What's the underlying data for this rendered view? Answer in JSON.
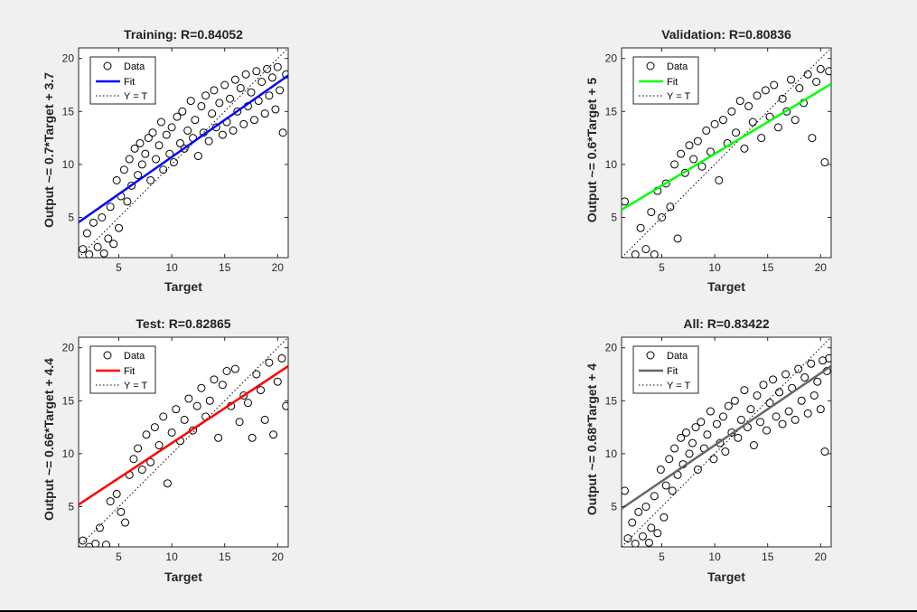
{
  "figure": {
    "background": "#f0f0f0",
    "panels": [
      {
        "title": "Training: R=0.84052",
        "xlabel": "Target",
        "ylabel": "Output ~= 0.7*Target + 3.7",
        "xlim": [
          1.2,
          21
        ],
        "ylim": [
          1.2,
          21
        ],
        "xticks": [
          5,
          10,
          15,
          20
        ],
        "yticks": [
          5,
          10,
          15,
          20
        ],
        "fit": {
          "slope": 0.7,
          "intercept": 3.7,
          "color": "#0000ff"
        },
        "legend": {
          "data": "Data",
          "fit": "Fit",
          "ident": "Y = T",
          "position": "top-left"
        }
      },
      {
        "title": "Validation: R=0.80836",
        "xlabel": "Target",
        "ylabel": "Output ~= 0.6*Target + 5",
        "xlim": [
          1.2,
          21
        ],
        "ylim": [
          1.2,
          21
        ],
        "xticks": [
          5,
          10,
          15,
          20
        ],
        "yticks": [
          5,
          10,
          15,
          20
        ],
        "fit": {
          "slope": 0.6,
          "intercept": 5,
          "color": "#00ff00"
        },
        "legend": {
          "data": "Data",
          "fit": "Fit",
          "ident": "Y = T",
          "position": "top-left"
        }
      },
      {
        "title": "Test: R=0.82865",
        "xlabel": "Target",
        "ylabel": "Output ~= 0.66*Target + 4.4",
        "xlim": [
          1.2,
          21
        ],
        "ylim": [
          1.2,
          21
        ],
        "xticks": [
          5,
          10,
          15,
          20
        ],
        "yticks": [
          5,
          10,
          15,
          20
        ],
        "fit": {
          "slope": 0.66,
          "intercept": 4.4,
          "color": "#ff0000"
        },
        "legend": {
          "data": "Data",
          "fit": "Fit",
          "ident": "Y = T",
          "position": "top-left"
        }
      },
      {
        "title": "All: R=0.83422",
        "xlabel": "Target",
        "ylabel": "Output ~= 0.68*Target + 4",
        "xlim": [
          1.2,
          21
        ],
        "ylim": [
          1.2,
          21
        ],
        "xticks": [
          5,
          10,
          15,
          20
        ],
        "yticks": [
          5,
          10,
          15,
          20
        ],
        "fit": {
          "slope": 0.68,
          "intercept": 4,
          "color": "#666666"
        },
        "legend": {
          "data": "Data",
          "fit": "Fit",
          "ident": "Y = T",
          "position": "top-left"
        }
      }
    ]
  },
  "chart_data": [
    {
      "type": "scatter",
      "title": "Training: R=0.84052",
      "xlabel": "Target",
      "ylabel": "Output ~= 0.7*Target + 3.7",
      "xlim": [
        1.2,
        21
      ],
      "ylim": [
        1.2,
        21
      ],
      "grid": false,
      "legend": [
        "Data",
        "Fit",
        "Y = T"
      ],
      "points": [
        [
          1.6,
          2.0
        ],
        [
          2.0,
          3.5
        ],
        [
          2.2,
          1.5
        ],
        [
          2.6,
          4.5
        ],
        [
          3.0,
          2.2
        ],
        [
          3.4,
          5.0
        ],
        [
          3.6,
          1.6
        ],
        [
          4.0,
          3.0
        ],
        [
          4.2,
          6.0
        ],
        [
          4.5,
          2.5
        ],
        [
          4.8,
          8.5
        ],
        [
          5.0,
          4.0
        ],
        [
          5.2,
          7.0
        ],
        [
          5.5,
          9.5
        ],
        [
          5.8,
          6.5
        ],
        [
          6.0,
          10.5
        ],
        [
          6.2,
          8.0
        ],
        [
          6.5,
          11.5
        ],
        [
          6.8,
          9.0
        ],
        [
          7.0,
          12.0
        ],
        [
          7.2,
          10.0
        ],
        [
          7.5,
          11.0
        ],
        [
          7.8,
          12.5
        ],
        [
          8.0,
          8.5
        ],
        [
          8.2,
          13.0
        ],
        [
          8.5,
          10.5
        ],
        [
          8.8,
          11.8
        ],
        [
          9.0,
          14.0
        ],
        [
          9.2,
          9.5
        ],
        [
          9.5,
          12.8
        ],
        [
          9.8,
          11.0
        ],
        [
          10.0,
          13.5
        ],
        [
          10.2,
          10.2
        ],
        [
          10.5,
          14.5
        ],
        [
          10.8,
          12.0
        ],
        [
          11.0,
          15.0
        ],
        [
          11.2,
          11.5
        ],
        [
          11.5,
          13.2
        ],
        [
          11.8,
          16.0
        ],
        [
          12.0,
          12.5
        ],
        [
          12.2,
          14.2
        ],
        [
          12.5,
          10.8
        ],
        [
          12.8,
          15.5
        ],
        [
          13.0,
          13.0
        ],
        [
          13.2,
          16.5
        ],
        [
          13.5,
          12.2
        ],
        [
          13.8,
          14.8
        ],
        [
          14.0,
          17.0
        ],
        [
          14.2,
          13.5
        ],
        [
          14.5,
          15.8
        ],
        [
          14.8,
          12.8
        ],
        [
          15.0,
          17.5
        ],
        [
          15.2,
          14.0
        ],
        [
          15.5,
          16.2
        ],
        [
          15.8,
          13.2
        ],
        [
          16.0,
          18.0
        ],
        [
          16.2,
          15.0
        ],
        [
          16.5,
          17.2
        ],
        [
          16.8,
          13.8
        ],
        [
          17.0,
          18.5
        ],
        [
          17.2,
          15.5
        ],
        [
          17.5,
          16.8
        ],
        [
          17.8,
          14.2
        ],
        [
          18.0,
          18.8
        ],
        [
          18.2,
          16.0
        ],
        [
          18.5,
          17.8
        ],
        [
          18.8,
          14.8
        ],
        [
          19.0,
          19.0
        ],
        [
          19.2,
          16.5
        ],
        [
          19.5,
          18.2
        ],
        [
          19.8,
          15.2
        ],
        [
          20.0,
          19.2
        ],
        [
          20.2,
          17.0
        ],
        [
          20.5,
          13.0
        ],
        [
          20.8,
          18.5
        ]
      ]
    },
    {
      "type": "scatter",
      "title": "Validation: R=0.80836",
      "xlabel": "Target",
      "ylabel": "Output ~= 0.6*Target + 5",
      "xlim": [
        1.2,
        21
      ],
      "ylim": [
        1.2,
        21
      ],
      "grid": false,
      "legend": [
        "Data",
        "Fit",
        "Y = T"
      ],
      "points": [
        [
          1.5,
          6.5
        ],
        [
          2.5,
          1.5
        ],
        [
          3.0,
          4.0
        ],
        [
          3.5,
          2.0
        ],
        [
          4.0,
          5.5
        ],
        [
          4.3,
          1.5
        ],
        [
          4.6,
          7.5
        ],
        [
          5.0,
          5.0
        ],
        [
          5.4,
          8.2
        ],
        [
          5.8,
          6.0
        ],
        [
          6.2,
          10.0
        ],
        [
          6.5,
          3.0
        ],
        [
          6.8,
          11.0
        ],
        [
          7.2,
          9.2
        ],
        [
          7.6,
          11.8
        ],
        [
          8.0,
          10.5
        ],
        [
          8.4,
          12.2
        ],
        [
          8.8,
          9.8
        ],
        [
          9.2,
          13.2
        ],
        [
          9.6,
          11.2
        ],
        [
          10.0,
          13.8
        ],
        [
          10.4,
          8.5
        ],
        [
          10.8,
          14.2
        ],
        [
          11.2,
          12.0
        ],
        [
          11.6,
          15.0
        ],
        [
          12.0,
          13.0
        ],
        [
          12.4,
          16.0
        ],
        [
          12.8,
          11.5
        ],
        [
          13.2,
          15.5
        ],
        [
          13.6,
          14.0
        ],
        [
          14.0,
          16.5
        ],
        [
          14.4,
          12.5
        ],
        [
          14.8,
          17.0
        ],
        [
          15.2,
          14.5
        ],
        [
          15.6,
          17.5
        ],
        [
          16.0,
          13.5
        ],
        [
          16.4,
          16.2
        ],
        [
          16.8,
          15.0
        ],
        [
          17.2,
          18.0
        ],
        [
          17.6,
          14.2
        ],
        [
          18.0,
          17.2
        ],
        [
          18.4,
          15.8
        ],
        [
          18.8,
          18.5
        ],
        [
          19.2,
          12.5
        ],
        [
          19.6,
          17.8
        ],
        [
          20.0,
          19.0
        ],
        [
          20.4,
          10.2
        ],
        [
          20.8,
          18.8
        ]
      ]
    },
    {
      "type": "scatter",
      "title": "Test: R=0.82865",
      "xlabel": "Target",
      "ylabel": "Output ~= 0.66*Target + 4.4",
      "xlim": [
        1.2,
        21
      ],
      "ylim": [
        1.2,
        21
      ],
      "grid": false,
      "legend": [
        "Data",
        "Fit",
        "Y = T"
      ],
      "points": [
        [
          1.6,
          1.8
        ],
        [
          2.2,
          1.2
        ],
        [
          2.8,
          1.5
        ],
        [
          3.2,
          3.0
        ],
        [
          3.8,
          1.4
        ],
        [
          4.2,
          5.5
        ],
        [
          4.8,
          6.2
        ],
        [
          5.2,
          4.5
        ],
        [
          5.6,
          3.5
        ],
        [
          6.0,
          8.0
        ],
        [
          6.4,
          9.5
        ],
        [
          6.8,
          10.5
        ],
        [
          7.2,
          8.5
        ],
        [
          7.6,
          11.8
        ],
        [
          8.0,
          9.2
        ],
        [
          8.4,
          12.5
        ],
        [
          8.8,
          10.8
        ],
        [
          9.2,
          13.5
        ],
        [
          9.6,
          7.2
        ],
        [
          10.0,
          12.0
        ],
        [
          10.4,
          14.2
        ],
        [
          10.8,
          11.2
        ],
        [
          11.2,
          13.2
        ],
        [
          11.6,
          15.2
        ],
        [
          12.0,
          12.2
        ],
        [
          12.4,
          14.5
        ],
        [
          12.8,
          16.2
        ],
        [
          13.2,
          13.5
        ],
        [
          13.6,
          15.0
        ],
        [
          14.0,
          17.0
        ],
        [
          14.4,
          11.5
        ],
        [
          14.8,
          16.5
        ],
        [
          15.2,
          17.8
        ],
        [
          15.6,
          14.5
        ],
        [
          16.0,
          18.0
        ],
        [
          16.4,
          13.0
        ],
        [
          16.8,
          15.5
        ],
        [
          17.2,
          14.8
        ],
        [
          17.6,
          11.5
        ],
        [
          18.0,
          17.5
        ],
        [
          18.4,
          16.0
        ],
        [
          18.8,
          13.2
        ],
        [
          19.2,
          18.6
        ],
        [
          19.6,
          11.8
        ],
        [
          20.0,
          16.8
        ],
        [
          20.4,
          19.0
        ],
        [
          20.8,
          14.5
        ]
      ]
    },
    {
      "type": "scatter",
      "title": "All: R=0.83422",
      "xlabel": "Target",
      "ylabel": "Output ~= 0.68*Target + 4",
      "xlim": [
        1.2,
        21
      ],
      "ylim": [
        1.2,
        21
      ],
      "grid": false,
      "legend": [
        "Data",
        "Fit",
        "Y = T"
      ],
      "points": [
        [
          1.5,
          6.5
        ],
        [
          1.8,
          2.0
        ],
        [
          2.2,
          3.5
        ],
        [
          2.5,
          1.5
        ],
        [
          2.8,
          4.5
        ],
        [
          3.2,
          2.2
        ],
        [
          3.5,
          5.0
        ],
        [
          3.8,
          1.6
        ],
        [
          4.0,
          3.0
        ],
        [
          4.3,
          6.0
        ],
        [
          4.6,
          2.5
        ],
        [
          4.9,
          8.5
        ],
        [
          5.2,
          4.0
        ],
        [
          5.4,
          7.0
        ],
        [
          5.7,
          9.5
        ],
        [
          6.0,
          6.5
        ],
        [
          6.2,
          10.5
        ],
        [
          6.5,
          8.0
        ],
        [
          6.8,
          11.5
        ],
        [
          7.0,
          9.0
        ],
        [
          7.3,
          12.0
        ],
        [
          7.6,
          10.0
        ],
        [
          7.9,
          11.0
        ],
        [
          8.2,
          12.5
        ],
        [
          8.4,
          8.5
        ],
        [
          8.7,
          13.0
        ],
        [
          9.0,
          10.5
        ],
        [
          9.3,
          11.8
        ],
        [
          9.6,
          14.0
        ],
        [
          9.9,
          9.5
        ],
        [
          10.2,
          12.8
        ],
        [
          10.5,
          11.0
        ],
        [
          10.8,
          13.5
        ],
        [
          11.0,
          10.2
        ],
        [
          11.3,
          14.5
        ],
        [
          11.6,
          12.0
        ],
        [
          11.9,
          15.0
        ],
        [
          12.2,
          11.5
        ],
        [
          12.5,
          13.2
        ],
        [
          12.8,
          16.0
        ],
        [
          13.1,
          12.5
        ],
        [
          13.4,
          14.2
        ],
        [
          13.7,
          10.8
        ],
        [
          14.0,
          15.5
        ],
        [
          14.3,
          13.0
        ],
        [
          14.6,
          16.5
        ],
        [
          14.9,
          12.2
        ],
        [
          15.2,
          14.8
        ],
        [
          15.5,
          17.0
        ],
        [
          15.8,
          13.5
        ],
        [
          16.1,
          15.8
        ],
        [
          16.4,
          12.8
        ],
        [
          16.7,
          17.5
        ],
        [
          17.0,
          14.0
        ],
        [
          17.3,
          16.2
        ],
        [
          17.6,
          13.2
        ],
        [
          17.9,
          18.0
        ],
        [
          18.2,
          15.0
        ],
        [
          18.5,
          17.2
        ],
        [
          18.8,
          13.8
        ],
        [
          19.1,
          18.5
        ],
        [
          19.4,
          15.5
        ],
        [
          19.7,
          16.8
        ],
        [
          20.0,
          14.2
        ],
        [
          20.2,
          18.8
        ],
        [
          20.4,
          10.2
        ],
        [
          20.6,
          17.8
        ],
        [
          20.8,
          19.0
        ]
      ]
    }
  ]
}
